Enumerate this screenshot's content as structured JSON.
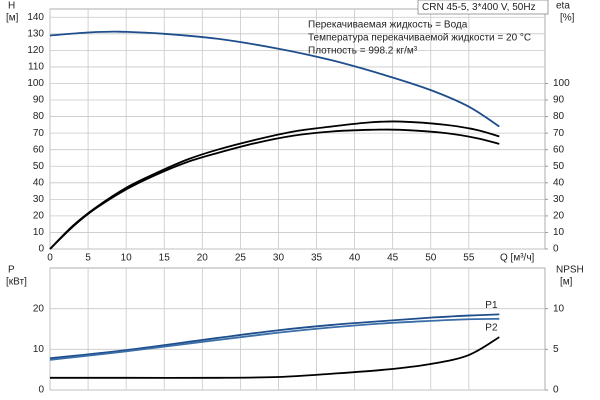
{
  "chart_data": [
    {
      "type": "line",
      "title": "CRN 45-5, 3*400 V, 50Hz",
      "annotations": [
        "Перекачиваемая жидкость = Вода",
        "Температура перекачиваемой жидкости = 20 °C",
        "Плотность = 998.2 кг/м³"
      ],
      "ylabel": "H",
      "yunit": "[м]",
      "y2label": "eta",
      "y2unit": "[%]",
      "xlabel": "Q [м³/ч]",
      "xlim": [
        0,
        65
      ],
      "xticks": [
        0,
        5,
        10,
        15,
        20,
        25,
        30,
        35,
        40,
        45,
        50,
        55
      ],
      "ylim": [
        0,
        145
      ],
      "yticks": [
        0,
        10,
        20,
        30,
        40,
        50,
        60,
        70,
        80,
        90,
        100,
        110,
        120,
        130,
        140
      ],
      "y2lim": [
        0,
        145
      ],
      "y2ticks": [
        0,
        10,
        20,
        30,
        40,
        50,
        60,
        70,
        80,
        90,
        100
      ],
      "grid": true,
      "xtick_labels": true,
      "series": [
        {
          "color": "#1f4e8c",
          "axis": "y",
          "x": [
            0,
            5,
            9,
            15,
            22,
            30,
            37,
            44,
            50,
            55,
            59
          ],
          "values": [
            129,
            130.8,
            131.3,
            130,
            127,
            121,
            114,
            105,
            96,
            86,
            74
          ]
        },
        {
          "color": "#000000",
          "axis": "y2",
          "x": [
            0,
            3,
            6,
            10,
            14,
            18,
            22,
            27,
            32,
            37,
            42,
            46,
            52,
            56,
            59
          ],
          "values": [
            0,
            14,
            25,
            37,
            46,
            54,
            60,
            66,
            71,
            74,
            76.5,
            77,
            75,
            72,
            68
          ]
        },
        {
          "color": "#000000",
          "axis": "y2",
          "x": [
            0,
            3,
            6,
            10,
            14,
            18,
            22,
            27,
            32,
            37,
            42,
            46,
            52,
            56,
            59
          ],
          "values": [
            0,
            13.5,
            24.5,
            36,
            45,
            52.5,
            58,
            64,
            68.5,
            71,
            72,
            72,
            70,
            67,
            63.5
          ]
        }
      ]
    },
    {
      "type": "line",
      "ylabel": "P",
      "yunit": "[кВт]",
      "y2label": "NPSH",
      "y2unit": "[м]",
      "xlim": [
        0,
        65
      ],
      "xticks": [
        0,
        5,
        10,
        15,
        20,
        25,
        30,
        35,
        40,
        45,
        50,
        55
      ],
      "ylim": [
        0,
        30
      ],
      "yticks": [
        0,
        10,
        20
      ],
      "y2lim": [
        0,
        15
      ],
      "y2ticks": [
        0,
        5,
        10
      ],
      "grid": true,
      "xtick_labels": false,
      "series": [
        {
          "name": "P1",
          "color": "#1f4e8c",
          "axis": "y",
          "x": [
            0,
            10,
            22,
            30,
            37,
            44,
            50,
            55,
            59
          ],
          "values": [
            7.8,
            9.8,
            12.8,
            14.7,
            16,
            17,
            17.8,
            18.3,
            18.6
          ]
        },
        {
          "name": "P2",
          "color": "#3a6ea8",
          "axis": "y",
          "x": [
            0,
            10,
            22,
            30,
            37,
            44,
            50,
            55,
            59
          ],
          "values": [
            7.4,
            9.5,
            12.3,
            14.1,
            15.4,
            16.4,
            17,
            17.4,
            17.5
          ]
        },
        {
          "color": "#000000",
          "axis": "y2",
          "x": [
            0,
            10,
            22,
            30,
            37,
            44,
            50,
            55,
            59
          ],
          "values": [
            1.5,
            1.5,
            1.5,
            1.6,
            2,
            2.5,
            3.2,
            4.3,
            6.5
          ]
        }
      ]
    }
  ]
}
